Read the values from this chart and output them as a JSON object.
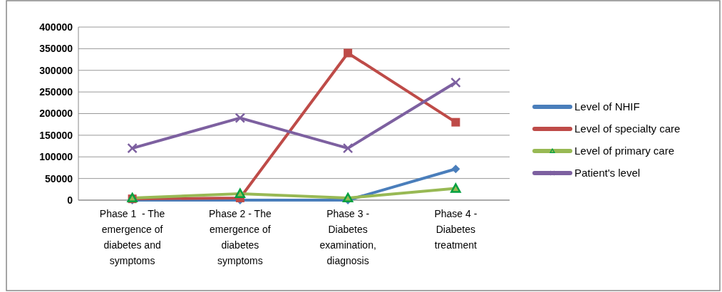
{
  "chart_data": {
    "type": "line",
    "categories": [
      "Phase 1  - The emergence of diabetes and symptoms",
      "Phase 2 - The emergence of diabetes symptoms",
      "Phase 3 - Diabetes examination, diagnosis",
      "Phase 4 - Diabetes treatment"
    ],
    "series": [
      {
        "name": "Level of NHIF",
        "color": "#4a7ebb",
        "marker": "diamond",
        "values": [
          0,
          0,
          0,
          72000
        ]
      },
      {
        "name": "Level of specialty care",
        "color": "#be4b48",
        "marker": "square",
        "values": [
          3000,
          5000,
          340000,
          180000
        ]
      },
      {
        "name": "Level of primary care",
        "color": "#98b954",
        "marker": "triangle",
        "values": [
          5000,
          15000,
          5000,
          27000
        ]
      },
      {
        "name": "Patient's level",
        "color": "#7d60a0",
        "marker": "cross",
        "values": [
          120000,
          190000,
          120000,
          272000
        ]
      }
    ],
    "ylim": [
      0,
      400000
    ],
    "yticks": [
      0,
      50000,
      100000,
      150000,
      200000,
      250000,
      300000,
      350000,
      400000
    ],
    "grid": "y",
    "legend": "right",
    "line_style": "solid"
  }
}
